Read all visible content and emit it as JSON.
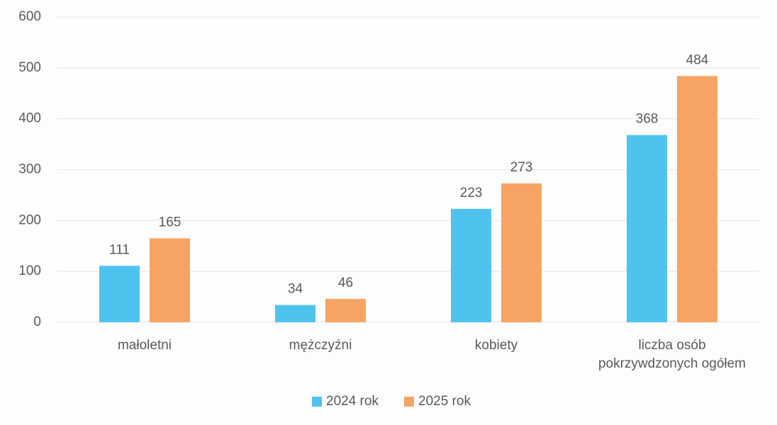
{
  "chart_data": {
    "type": "bar",
    "categories": [
      "małoletni",
      "mężczyźni",
      "kobiety",
      "liczba osób pokrzywdzonych ogółem"
    ],
    "series": [
      {
        "name": "2024 rok",
        "color": "#4fc3ee",
        "values": [
          111,
          34,
          223,
          368
        ]
      },
      {
        "name": "2025 rok",
        "color": "#f6a464",
        "values": [
          165,
          46,
          273,
          484
        ]
      }
    ],
    "ylim": [
      0,
      600
    ],
    "yticks": [
      0,
      100,
      200,
      300,
      400,
      500,
      600
    ],
    "grid": true,
    "legend": "bottom"
  }
}
